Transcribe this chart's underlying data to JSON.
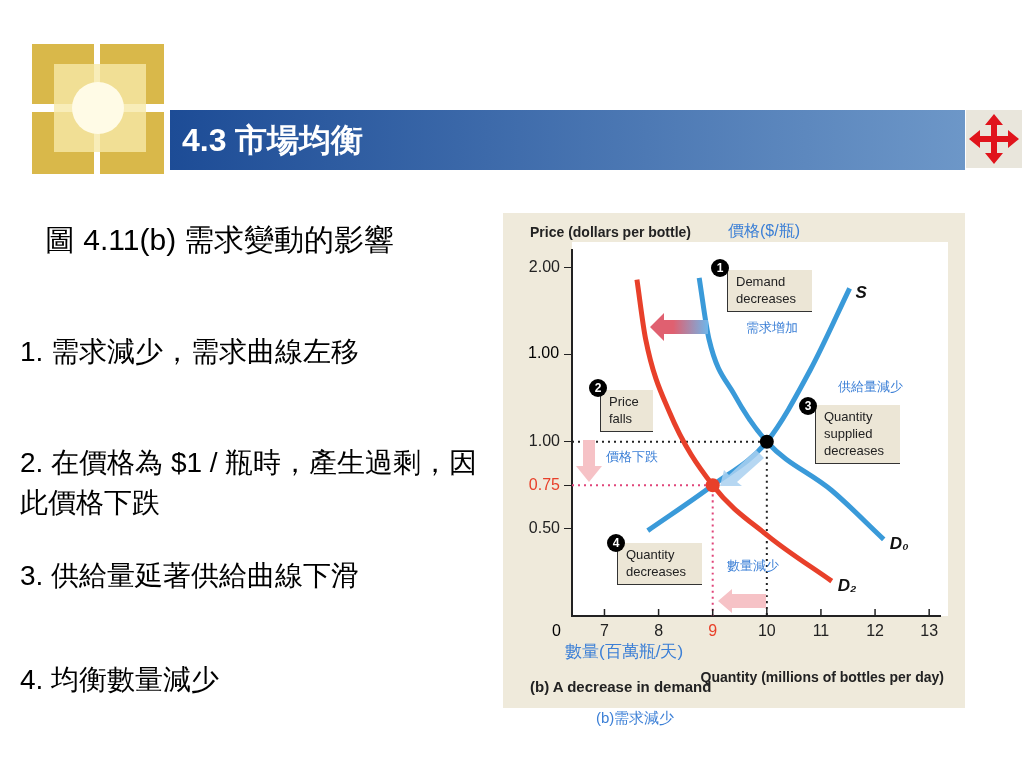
{
  "chart_data": {
    "type": "line",
    "title": "4.3 市場均衡",
    "subtitle": "圖 4.11(b) 需求變動的影響",
    "xlabel": "Quantity (millions of bottles per day)",
    "ylabel": "Price (dollars per bottle)",
    "xlim": [
      6.4,
      13.2
    ],
    "xticks": [
      7,
      8,
      9,
      10,
      11,
      12,
      13
    ],
    "ylim": [
      0,
      2.1
    ],
    "yticks": [
      {
        "value": 0.5,
        "label": "0.50"
      },
      {
        "value": 0.75,
        "label": "0.75"
      },
      {
        "value": 1,
        "label": "1.00"
      },
      {
        "value": 1.5,
        "label": null
      },
      {
        "value": 2,
        "label": "2.00"
      }
    ],
    "grid": false,
    "legend": false,
    "series": [
      {
        "name": "S",
        "color": "#3a9ad9",
        "marker": "none",
        "line_style": "solid",
        "x": [
          7.8,
          9,
          10,
          10.8,
          11.53
        ],
        "values": [
          0.49,
          0.75,
          1.0,
          1.41,
          1.88
        ]
      },
      {
        "name": "D₀",
        "color": "#3a9ad9",
        "marker": "none",
        "line_style": "solid",
        "x": [
          8.75,
          8.93,
          9.4,
          10,
          11.2,
          12.16
        ],
        "values": [
          1.94,
          1.59,
          1.27,
          1.0,
          0.72,
          0.44
        ]
      },
      {
        "name": "D₂",
        "color": "#e8402a",
        "marker": "none",
        "line_style": "solid",
        "x": [
          7.6,
          7.76,
          8.2,
          9,
          10.02,
          11.2
        ],
        "values": [
          1.93,
          1.59,
          1.17,
          0.75,
          0.46,
          0.2
        ]
      },
      {
        "color": "#222222",
        "marker": "none",
        "line_style": "dotted",
        "x": [
          6.4,
          10,
          10
        ],
        "values": [
          1,
          1,
          0
        ]
      },
      {
        "color": "#e0457a",
        "marker": "none",
        "line_style": "dotted",
        "x": [
          6.4,
          9,
          9
        ],
        "values": [
          0.75,
          0.75,
          0
        ]
      },
      {
        "type": "scatter",
        "color": "#000000",
        "marker": "circle",
        "x": [
          10
        ],
        "values": [
          1
        ]
      },
      {
        "type": "scatter",
        "color": "#e8402a",
        "marker": "circle",
        "x": [
          9
        ],
        "values": [
          0.75
        ]
      }
    ],
    "annotations": [
      "1. 需求減少，需求曲線左移",
      "2. 在價格為 $1 / 瓶時，產生過剩，因此價格下跌",
      "3. 供給量延著供給曲線下滑",
      "4. 均衡數量減少",
      "價格($/瓶)",
      "數量(百萬瓶/天)",
      "(b) A decrease in demand",
      "(b)需求減少",
      "1",
      "Demand decreases",
      "需求增加",
      "2",
      "Price falls",
      "價格下跌",
      "供給量減少",
      "3",
      "Quantity supplied decreases",
      "4",
      "Quantity decreases",
      "數量減少",
      "0",
      "1.00"
    ]
  }
}
